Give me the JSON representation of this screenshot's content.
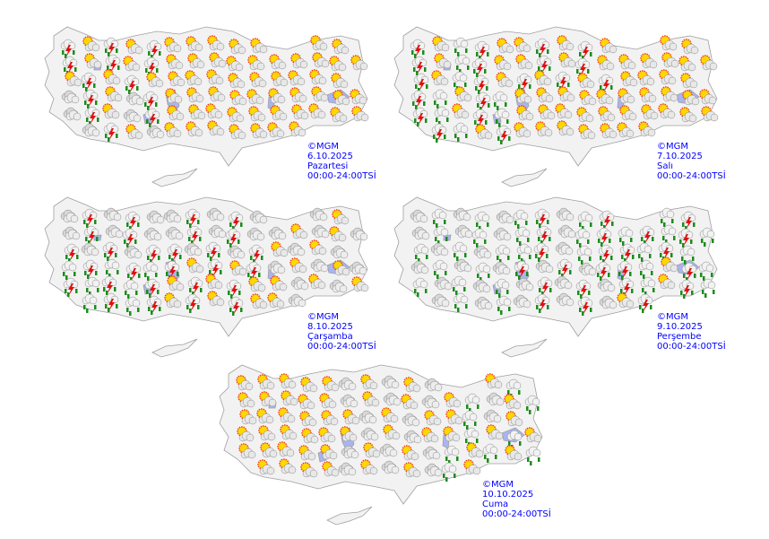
{
  "colors": {
    "land": "#f2f2f2",
    "border": "#a0a0a0",
    "lake": "#aab4f0",
    "label": "#0000ff"
  },
  "icon_types": {
    "sun": "sun-behind-cloud-icon",
    "storm": "thunderstorm-icon",
    "rain": "rain-icon",
    "cloud": "cloud-icon"
  },
  "panels": [
    {
      "copyright": "©MGM",
      "date": "6.10.2025",
      "day": "Pazartesi",
      "period": "00:00-24:00TSİ",
      "zones": {
        "nw": [
          "storm",
          "sun"
        ],
        "sw": [
          "storm",
          "sun",
          "cloud"
        ],
        "nc": [
          "sun"
        ],
        "sc": [
          "sun"
        ],
        "ne": [
          "sun"
        ],
        "se": [
          "sun"
        ]
      }
    },
    {
      "copyright": "©MGM",
      "date": "7.10.2025",
      "day": "Salı",
      "period": "00:00-24:00TSİ",
      "zones": {
        "nw": [
          "rain",
          "storm",
          "sun"
        ],
        "sw": [
          "storm",
          "rain",
          "sun"
        ],
        "nc": [
          "sun",
          "storm"
        ],
        "sc": [
          "sun"
        ],
        "ne": [
          "sun"
        ],
        "se": [
          "sun"
        ]
      }
    },
    {
      "copyright": "©MGM",
      "date": "8.10.2025",
      "day": "Çarşamba",
      "period": "00:00-24:00TSİ",
      "zones": {
        "nw": [
          "cloud",
          "storm"
        ],
        "sw": [
          "storm",
          "rain"
        ],
        "nc": [
          "storm",
          "cloud"
        ],
        "sc": [
          "storm",
          "sun"
        ],
        "ne": [
          "cloud",
          "sun"
        ],
        "se": [
          "sun",
          "cloud"
        ]
      }
    },
    {
      "copyright": "©MGM",
      "date": "9.10.2025",
      "day": "Perşembe",
      "period": "00:00-24:00TSİ",
      "zones": {
        "nw": [
          "rain",
          "cloud"
        ],
        "sw": [
          "cloud",
          "rain"
        ],
        "nc": [
          "storm",
          "cloud",
          "rain"
        ],
        "sc": [
          "cloud",
          "storm"
        ],
        "ne": [
          "storm",
          "rain"
        ],
        "se": [
          "storm",
          "rain",
          "sun"
        ]
      }
    },
    {
      "copyright": "©MGM",
      "date": "10.10.2025",
      "day": "Cuma",
      "period": "00:00-24:00TSİ",
      "zones": {
        "nw": [
          "sun"
        ],
        "sw": [
          "sun"
        ],
        "nc": [
          "sun",
          "cloud"
        ],
        "sc": [
          "sun",
          "cloud"
        ],
        "ne": [
          "rain",
          "cloud",
          "sun"
        ],
        "se": [
          "rain",
          "sun"
        ]
      }
    }
  ]
}
